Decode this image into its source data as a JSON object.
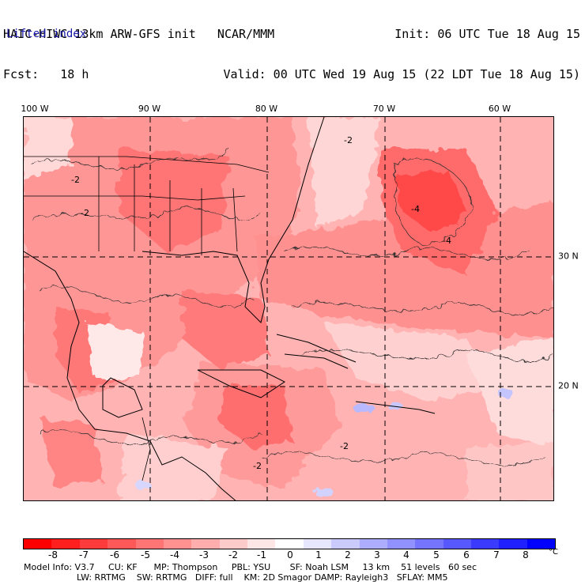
{
  "header": {
    "title": "HAIC-HIWC 13km ARW-GFS init   NCAR/MMM",
    "fcst": "Fcst:   18 h",
    "init": "Init: 06 UTC Tue 18 Aug 15",
    "valid": "Valid: 00 UTC Wed 19 Aug 15 (22 LDT Tue 18 Aug 15)",
    "field": "Lifted index"
  },
  "map": {
    "longitude_labels": [
      "100 W",
      "90 W",
      "80 W",
      "70 W",
      "60 W"
    ],
    "latitude_labels": [
      "30 N",
      "20 N"
    ],
    "contour_labels": [
      "-2",
      "-2",
      "-2",
      "-2",
      "-4",
      "-2",
      "-4"
    ]
  },
  "colorbar": {
    "colors": [
      "#ff0000",
      "#ff1f1f",
      "#ff3b3b",
      "#ff5858",
      "#ff7474",
      "#ff9191",
      "#ffadad",
      "#ffcaca",
      "#ffe6e6",
      "#ffffff",
      "#e6e6ff",
      "#cacaff",
      "#adadff",
      "#9191ff",
      "#7474ff",
      "#5858ff",
      "#3b3bff",
      "#1f1fff",
      "#0000ff"
    ],
    "labels": [
      "-8",
      "-7",
      "-6",
      "-5",
      "-4",
      "-3",
      "-2",
      "-1",
      "0",
      "1",
      "2",
      "3",
      "4",
      "5",
      "6",
      "7",
      "8"
    ],
    "unit": "°C"
  },
  "model_info": {
    "line1": "Model Info: V3.7     CU: KF      MP: Thompson     PBL: YSU       SF: Noah LSM     13 km    51 levels   60 sec",
    "line2": "LW: RRTMG    SW: RRTMG   DIFF: full    KM: 2D Smagor DAMP: Rayleigh3   SFLAY: MM5"
  }
}
